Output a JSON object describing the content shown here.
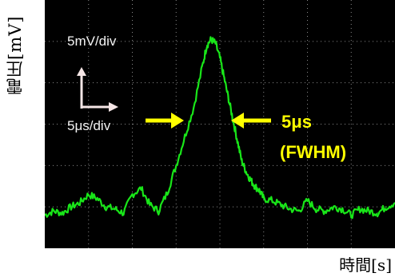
{
  "y_axis_label": "電圧[mV]",
  "x_axis_label": "時間[s]",
  "scope": {
    "vertical_scale": "5mV/div",
    "horizontal_scale": "5μs/div",
    "trace_color": "#19e619",
    "background_color": "#000000",
    "grid_color": "#8a8a8a",
    "annotation_color": "#ffff00",
    "scale_arrow_color": "#f5e6e6"
  },
  "annotation": {
    "line1": "5μs",
    "line2": "(FWHM)"
  },
  "chart_data": {
    "type": "line",
    "title": "",
    "xlabel": "時間[s]",
    "ylabel": "電圧[mV]",
    "x_divisions": 8,
    "y_divisions": 6,
    "x_range_div": [
      0,
      8
    ],
    "y_range_div": [
      0,
      6
    ],
    "grid": true,
    "series": [
      {
        "x": [
          0.0,
          0.2,
          0.4,
          0.6,
          0.8,
          1.0,
          1.2,
          1.4,
          1.6,
          1.8,
          2.0,
          2.2,
          2.4,
          2.6,
          2.8,
          3.0,
          3.2,
          3.4,
          3.6,
          3.7,
          3.8,
          3.9,
          4.0,
          4.1,
          4.2,
          4.3,
          4.4,
          4.5,
          4.6,
          4.7,
          4.8,
          4.9,
          5.0,
          5.2,
          5.4,
          5.6,
          5.8,
          6.0,
          6.2,
          6.4,
          6.6,
          6.8,
          7.0,
          7.2,
          7.4,
          7.6,
          7.8,
          8.0
        ],
        "values": [
          0.8,
          0.9,
          0.85,
          1.0,
          1.1,
          1.3,
          1.2,
          1.0,
          0.95,
          0.85,
          1.3,
          1.45,
          1.05,
          0.9,
          1.35,
          2.0,
          2.7,
          3.4,
          4.4,
          4.9,
          5.05,
          4.95,
          4.6,
          4.1,
          3.6,
          3.1,
          2.6,
          2.1,
          1.85,
          1.65,
          1.5,
          1.4,
          1.2,
          1.15,
          1.05,
          0.95,
          0.9,
          1.15,
          0.95,
          0.9,
          1.0,
          0.95,
          0.8,
          0.95,
          0.9,
          0.85,
          1.0,
          1.1
        ]
      }
    ]
  }
}
